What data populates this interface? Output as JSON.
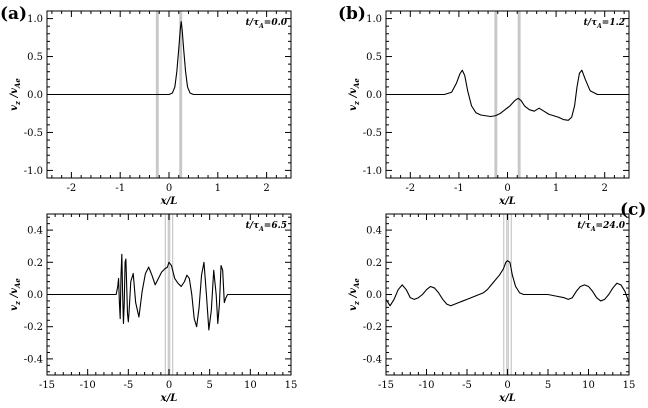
{
  "figure": {
    "panel_labels": [
      "(a)",
      "(b)",
      "(c)"
    ]
  },
  "chart_data": [
    {
      "type": "line",
      "panel_label": "(a)",
      "annotation": {
        "base": "t/τ",
        "sub": "A",
        "value": "=0.0"
      },
      "xlabel": "x/L",
      "ylabel": {
        "v": "v",
        "vsub": "z",
        "slash": " /v",
        "ssub": "Ae"
      },
      "xlim": [
        -2.5,
        2.5
      ],
      "ylim": [
        -1.1,
        1.1
      ],
      "xticks": [
        -2,
        -1,
        0,
        1,
        2
      ],
      "yticks": [
        -1.0,
        -0.5,
        0.0,
        0.5,
        1.0
      ],
      "ytick_labels": [
        "-1.0",
        "-0.5",
        "0.0",
        "0.5",
        "1.0"
      ],
      "shaded_bands": [
        [
          -0.27,
          -0.21
        ],
        [
          0.21,
          0.27
        ]
      ],
      "band_style": "thick",
      "series": [
        {
          "x": [
            -2.5,
            0.0,
            0.07,
            0.12,
            0.16,
            0.2,
            0.23,
            0.25,
            0.27,
            0.3,
            0.34,
            0.38,
            0.43,
            0.5,
            2.5
          ],
          "y": [
            0.0,
            0.0,
            0.02,
            0.1,
            0.3,
            0.6,
            0.85,
            0.96,
            0.85,
            0.6,
            0.3,
            0.1,
            0.02,
            0.0,
            0.0
          ]
        }
      ]
    },
    {
      "type": "line",
      "panel_label": "(b)",
      "annotation": {
        "base": "t/τ",
        "sub": "A",
        "value": "=1.2"
      },
      "xlabel": "x/L",
      "ylabel": {
        "v": "v",
        "vsub": "z",
        "slash": " /v",
        "ssub": "Ae"
      },
      "xlim": [
        -2.5,
        2.5
      ],
      "ylim": [
        -1.1,
        1.1
      ],
      "xticks": [
        -2,
        -1,
        0,
        1,
        2
      ],
      "yticks": [
        -1.0,
        -0.5,
        0.0,
        0.5,
        1.0
      ],
      "ytick_labels": [
        "-1.0",
        "-0.5",
        "0.0",
        "0.5",
        "1.0"
      ],
      "shaded_bands": [
        [
          -0.27,
          -0.21
        ],
        [
          0.21,
          0.27
        ]
      ],
      "band_style": "thick",
      "series": [
        {
          "x": [
            -2.5,
            -1.3,
            -1.15,
            -1.05,
            -0.98,
            -0.93,
            -0.88,
            -0.82,
            -0.74,
            -0.65,
            -0.55,
            -0.45,
            -0.35,
            -0.25,
            -0.15,
            -0.05,
            0.05,
            0.15,
            0.22,
            0.28,
            0.35,
            0.45,
            0.55,
            0.65,
            0.75,
            0.85,
            0.95,
            1.05,
            1.15,
            1.25,
            1.32,
            1.38,
            1.43,
            1.48,
            1.53,
            1.6,
            1.7,
            1.85,
            2.0,
            2.5
          ],
          "y": [
            0.0,
            0.0,
            0.03,
            0.15,
            0.27,
            0.32,
            0.25,
            0.05,
            -0.15,
            -0.24,
            -0.27,
            -0.28,
            -0.29,
            -0.28,
            -0.25,
            -0.2,
            -0.15,
            -0.08,
            -0.05,
            -0.08,
            -0.15,
            -0.2,
            -0.22,
            -0.18,
            -0.22,
            -0.26,
            -0.28,
            -0.3,
            -0.33,
            -0.34,
            -0.3,
            -0.15,
            0.1,
            0.28,
            0.32,
            0.2,
            0.05,
            0.0,
            0.0,
            0.0
          ]
        }
      ]
    },
    {
      "type": "line",
      "panel_label": "",
      "annotation": {
        "base": "t/τ",
        "sub": "A",
        "value": "=6.5"
      },
      "xlabel": "x/L",
      "ylabel": {
        "v": "v",
        "vsub": "z",
        "slash": " /v",
        "ssub": "Ae"
      },
      "xlim": [
        -15,
        15
      ],
      "ylim": [
        -0.5,
        0.5
      ],
      "xticks": [
        -15,
        -10,
        -5,
        0,
        5,
        10,
        15
      ],
      "yticks": [
        -0.4,
        -0.2,
        0.0,
        0.2,
        0.4
      ],
      "ytick_labels": [
        "-0.4",
        "-0.2",
        "0.0",
        "0.2",
        "0.4"
      ],
      "shaded_bands": [
        [
          -0.35,
          -0.2
        ],
        [
          0.2,
          0.35
        ]
      ],
      "band_style": "thin",
      "series": [
        {
          "x": [
            -15,
            -6.5,
            -6.3,
            -6.2,
            -6.1,
            -6.0,
            -5.9,
            -5.8,
            -5.7,
            -5.6,
            -5.5,
            -5.4,
            -5.3,
            -5.2,
            -5.1,
            -5.0,
            -4.9,
            -4.7,
            -4.4,
            -4.1,
            -3.7,
            -3.3,
            -2.9,
            -2.5,
            -2.1,
            -1.7,
            -1.3,
            -0.9,
            -0.5,
            -0.2,
            0.0,
            0.3,
            0.7,
            1.1,
            1.5,
            1.9,
            2.2,
            2.5,
            2.8,
            3.1,
            3.4,
            3.7,
            4.0,
            4.3,
            4.6,
            4.9,
            5.2,
            5.5,
            5.8,
            6.0,
            6.2,
            6.4,
            6.6,
            6.8,
            7.0,
            7.2,
            15
          ],
          "y": [
            0.0,
            0.0,
            0.05,
            0.1,
            -0.05,
            -0.15,
            0.12,
            0.25,
            0.0,
            -0.18,
            -0.05,
            0.2,
            0.22,
            0.05,
            -0.12,
            -0.17,
            -0.1,
            0.08,
            0.13,
            -0.05,
            -0.14,
            0.02,
            0.13,
            0.17,
            0.12,
            0.06,
            0.1,
            0.14,
            0.16,
            0.17,
            0.2,
            0.18,
            0.1,
            0.07,
            0.05,
            0.08,
            0.12,
            0.1,
            0.0,
            -0.15,
            -0.2,
            -0.08,
            0.12,
            0.2,
            0.0,
            -0.22,
            -0.1,
            0.15,
            0.0,
            -0.18,
            -0.06,
            0.18,
            0.15,
            -0.05,
            -0.02,
            0.0,
            0.0
          ]
        }
      ]
    },
    {
      "type": "line",
      "panel_label": "(c)",
      "annotation": {
        "base": "t/τ",
        "sub": "A",
        "value": "=24.0"
      },
      "xlabel": "x/L",
      "ylabel": {
        "v": "v",
        "vsub": "z",
        "slash": " /v",
        "ssub": "Ae"
      },
      "xlim": [
        -15,
        15
      ],
      "ylim": [
        -0.5,
        0.5
      ],
      "xticks": [
        -15,
        -10,
        -5,
        0,
        5,
        10,
        15
      ],
      "yticks": [
        -0.4,
        -0.2,
        0.0,
        0.2,
        0.4
      ],
      "ytick_labels": [
        "-0.4",
        "-0.2",
        "0.0",
        "0.2",
        "0.4"
      ],
      "shaded_bands": [
        [
          -0.35,
          -0.2
        ],
        [
          0.2,
          0.35
        ]
      ],
      "band_style": "thin",
      "series": [
        {
          "x": [
            -15,
            -14.5,
            -14.0,
            -13.5,
            -13.0,
            -12.5,
            -12.0,
            -11.5,
            -11.0,
            -10.5,
            -10.0,
            -9.5,
            -9.0,
            -8.5,
            -8.0,
            -7.5,
            -7.0,
            -6.5,
            -6.0,
            -5.5,
            -5.0,
            -4.5,
            -4.0,
            -3.5,
            -3.0,
            -2.5,
            -2.0,
            -1.5,
            -1.0,
            -0.5,
            -0.2,
            0.0,
            0.3,
            0.6,
            1.0,
            1.5,
            2.0,
            2.5,
            3.0,
            3.5,
            4.0,
            5.0,
            6.0,
            7.0,
            7.5,
            8.0,
            8.5,
            9.0,
            9.5,
            10.0,
            10.5,
            11.0,
            11.5,
            12.0,
            12.5,
            13.0,
            13.5,
            14.0,
            14.5,
            15.0
          ],
          "y": [
            -0.03,
            -0.07,
            -0.03,
            0.03,
            0.06,
            0.03,
            -0.02,
            -0.03,
            -0.02,
            0.0,
            0.03,
            0.05,
            0.04,
            0.01,
            -0.03,
            -0.06,
            -0.07,
            -0.06,
            -0.05,
            -0.04,
            -0.03,
            -0.02,
            -0.01,
            0.0,
            0.01,
            0.03,
            0.06,
            0.09,
            0.12,
            0.16,
            0.2,
            0.21,
            0.2,
            0.12,
            0.05,
            0.01,
            0.0,
            0.0,
            0.0,
            0.0,
            0.0,
            0.0,
            -0.01,
            -0.02,
            -0.03,
            -0.02,
            0.02,
            0.05,
            0.06,
            0.05,
            0.02,
            -0.02,
            -0.04,
            -0.03,
            0.0,
            0.04,
            0.07,
            0.06,
            0.02,
            -0.05
          ]
        }
      ]
    }
  ]
}
